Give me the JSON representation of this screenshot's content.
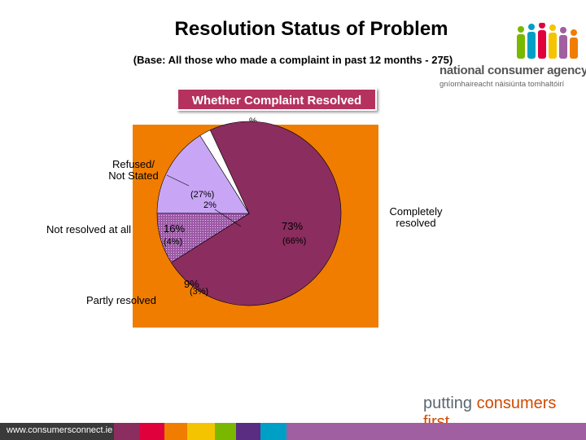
{
  "header": {
    "title": "Resolution Status of Problem",
    "subtitle": "(Base: All those who made a complaint in past 12 months - 275)"
  },
  "logo": {
    "line1": "national consumer agency",
    "line2": "gníomhaireacht náisiúnta tomhaltóirí"
  },
  "caption": "Whether Complaint Resolved",
  "unit_label": "%",
  "chart_data": {
    "type": "pie",
    "title": "Whether Complaint Resolved",
    "unit": "%",
    "slices": [
      {
        "label": "Completely resolved",
        "value": 73,
        "annotation": "(66%)",
        "color": "#8b2d5f"
      },
      {
        "label": "Partly resolved",
        "value": 9,
        "annotation": "(3%)",
        "color": "#9b59a5"
      },
      {
        "label": "Not resolved at all",
        "value": 16,
        "annotation": "(4%)",
        "color": "#c9a6f5"
      },
      {
        "label": "Refused/ Not Stated",
        "value": 2,
        "annotation": "(27%)",
        "color": "#ffffff"
      }
    ]
  },
  "labels": {
    "completely": [
      "Completely",
      "resolved"
    ],
    "refused": [
      "Refused/",
      "Not Stated"
    ],
    "not_resolved": "Not resolved at all",
    "partly": "Partly resolved",
    "v_completely": "73%",
    "a_completely": "(66%)",
    "v_not_resolved": "16%",
    "a_not_resolved": "(4%)",
    "v_partly": "9%",
    "a_partly": "(3%)",
    "v_refused": "2%",
    "a_refused": "(27%)"
  },
  "footer": {
    "slogan_part1": "putting ",
    "slogan_part2": "consumers first",
    "url": "www.consumersconnect.ie",
    "bar_colors": [
      "#3a3a3a",
      "#8b2d5f",
      "#e0003c",
      "#f07d00",
      "#f5c400",
      "#7ab800",
      "#5a2d82",
      "#00a0c6",
      "#a05fa0"
    ]
  }
}
